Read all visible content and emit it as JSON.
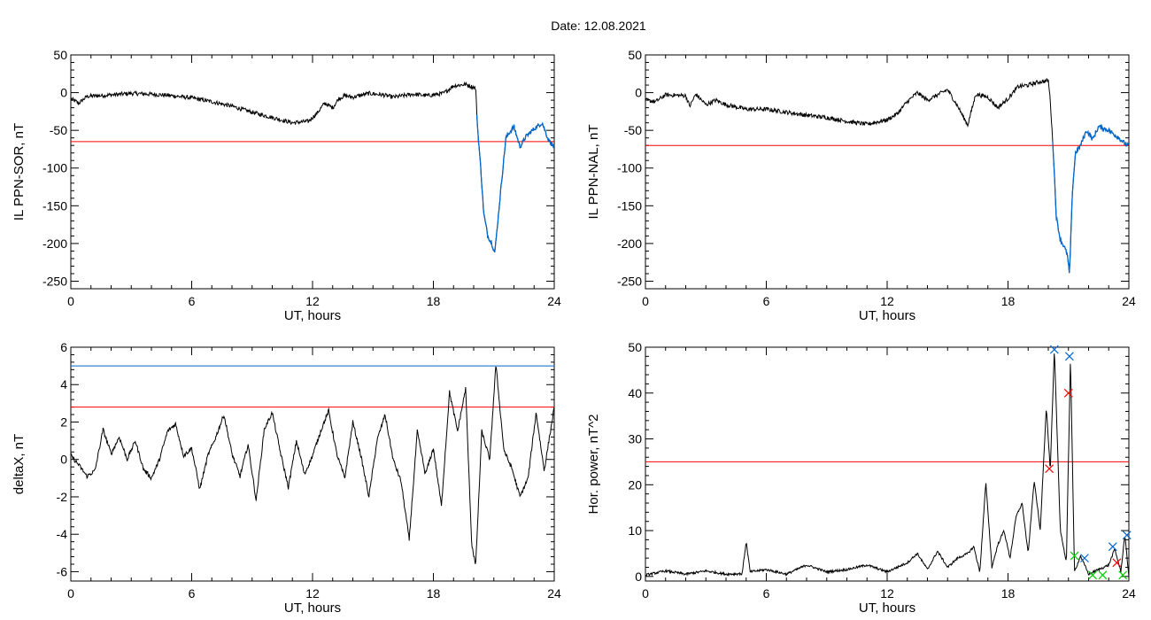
{
  "title": "Date:  12.08.2021",
  "colors": {
    "trace": "#000000",
    "threshold_red": "#ff0000",
    "threshold_blue": "#0066cc",
    "highlight_blue": "#0066cc",
    "marker_green": "#00cc00"
  },
  "chart_data": [
    {
      "id": "p1",
      "type": "line",
      "xlabel": "UT, hours",
      "ylabel": "IL PPN-SOR, nT",
      "xlim": [
        0,
        24
      ],
      "ylim": [
        -260,
        50
      ],
      "xticks": [
        0,
        6,
        12,
        18,
        24
      ],
      "yticks": [
        50,
        0,
        -50,
        -100,
        -150,
        -200,
        -250
      ],
      "hlines": [
        {
          "y": -65,
          "color": "#ff0000"
        }
      ],
      "highlight_from_x": 20.15,
      "highlight_color": "#0066cc",
      "keypoints": [
        [
          0,
          -8
        ],
        [
          0.4,
          -14
        ],
        [
          0.8,
          -5
        ],
        [
          2,
          -3
        ],
        [
          3,
          -1
        ],
        [
          4,
          -2
        ],
        [
          5,
          -4
        ],
        [
          6,
          -7
        ],
        [
          7,
          -12
        ],
        [
          8,
          -18
        ],
        [
          9,
          -26
        ],
        [
          10,
          -33
        ],
        [
          11,
          -40
        ],
        [
          11.8,
          -38
        ],
        [
          12.2,
          -28
        ],
        [
          12.6,
          -14
        ],
        [
          13,
          -20
        ],
        [
          13.3,
          -8
        ],
        [
          13.6,
          -4
        ],
        [
          14,
          -6
        ],
        [
          14.8,
          -1
        ],
        [
          15.5,
          -3
        ],
        [
          16,
          -6
        ],
        [
          17,
          -2
        ],
        [
          17.7,
          -4
        ],
        [
          18.5,
          -1
        ],
        [
          19,
          9
        ],
        [
          19.6,
          11
        ],
        [
          20.1,
          6
        ],
        [
          20.2,
          -50
        ],
        [
          20.35,
          -100
        ],
        [
          20.5,
          -160
        ],
        [
          20.7,
          -190
        ],
        [
          20.9,
          -200
        ],
        [
          21.05,
          -212
        ],
        [
          21.2,
          -170
        ],
        [
          21.45,
          -100
        ],
        [
          21.6,
          -60
        ],
        [
          21.8,
          -52
        ],
        [
          22,
          -45
        ],
        [
          22.3,
          -72
        ],
        [
          22.6,
          -58
        ],
        [
          23,
          -48
        ],
        [
          23.4,
          -40
        ],
        [
          23.7,
          -62
        ],
        [
          24,
          -72
        ]
      ]
    },
    {
      "id": "p2",
      "type": "line",
      "xlabel": "UT, hours",
      "ylabel": "IL PPN-NAL, nT",
      "xlim": [
        0,
        24
      ],
      "ylim": [
        -260,
        50
      ],
      "xticks": [
        0,
        6,
        12,
        18,
        24
      ],
      "yticks": [
        50,
        0,
        -50,
        -100,
        -150,
        -200,
        -250
      ],
      "hlines": [
        {
          "y": -70,
          "color": "#ff0000"
        }
      ],
      "highlight_from_x": 20.2,
      "highlight_color": "#0066cc",
      "keypoints": [
        [
          0,
          -10
        ],
        [
          0.5,
          -12
        ],
        [
          1,
          -3
        ],
        [
          2,
          -4
        ],
        [
          2.2,
          -18
        ],
        [
          2.5,
          -2
        ],
        [
          3,
          -16
        ],
        [
          3.5,
          -10
        ],
        [
          4,
          -16
        ],
        [
          5,
          -22
        ],
        [
          6,
          -22
        ],
        [
          7,
          -26
        ],
        [
          8,
          -30
        ],
        [
          9,
          -33
        ],
        [
          10,
          -38
        ],
        [
          11,
          -42
        ],
        [
          12,
          -36
        ],
        [
          12.5,
          -28
        ],
        [
          13,
          -12
        ],
        [
          13.5,
          0
        ],
        [
          14,
          -10
        ],
        [
          14.5,
          -3
        ],
        [
          15,
          4
        ],
        [
          15.5,
          -18
        ],
        [
          16,
          -43
        ],
        [
          16.4,
          -2
        ],
        [
          17,
          -6
        ],
        [
          17.5,
          -20
        ],
        [
          18,
          -8
        ],
        [
          18.5,
          8
        ],
        [
          19,
          10
        ],
        [
          19.5,
          14
        ],
        [
          20,
          16
        ],
        [
          20.1,
          -10
        ],
        [
          20.25,
          -80
        ],
        [
          20.4,
          -165
        ],
        [
          20.6,
          -195
        ],
        [
          20.8,
          -205
        ],
        [
          20.95,
          -215
        ],
        [
          21.05,
          -242
        ],
        [
          21.2,
          -130
        ],
        [
          21.35,
          -80
        ],
        [
          21.6,
          -70
        ],
        [
          21.9,
          -50
        ],
        [
          22.2,
          -62
        ],
        [
          22.5,
          -45
        ],
        [
          23,
          -50
        ],
        [
          23.5,
          -60
        ],
        [
          23.9,
          -70
        ],
        [
          24,
          -68
        ]
      ]
    },
    {
      "id": "p3",
      "type": "line",
      "xlabel": "UT, hours",
      "ylabel": "deltaX, nT",
      "xlim": [
        0,
        24
      ],
      "ylim": [
        -6.5,
        6
      ],
      "xticks": [
        0,
        6,
        12,
        18,
        24
      ],
      "yticks": [
        6,
        4,
        2,
        0,
        -2,
        -4,
        -6
      ],
      "hlines": [
        {
          "y": 5.0,
          "color": "#0066cc"
        },
        {
          "y": 2.8,
          "color": "#ff0000"
        }
      ],
      "keypoints": [
        [
          0,
          0.2
        ],
        [
          0.4,
          -0.3
        ],
        [
          0.8,
          -0.9
        ],
        [
          1.2,
          -0.6
        ],
        [
          1.6,
          1.6
        ],
        [
          2,
          0.3
        ],
        [
          2.4,
          1.2
        ],
        [
          2.8,
          0.0
        ],
        [
          3.2,
          1.0
        ],
        [
          3.6,
          -0.5
        ],
        [
          4,
          -1.0
        ],
        [
          4.4,
          0.0
        ],
        [
          4.8,
          1.5
        ],
        [
          5.2,
          1.9
        ],
        [
          5.6,
          0.2
        ],
        [
          6,
          0.6
        ],
        [
          6.4,
          -1.6
        ],
        [
          6.8,
          0.2
        ],
        [
          7.2,
          1.2
        ],
        [
          7.6,
          2.4
        ],
        [
          8,
          0.3
        ],
        [
          8.4,
          -0.9
        ],
        [
          8.8,
          0.8
        ],
        [
          9.2,
          -2.2
        ],
        [
          9.6,
          1.6
        ],
        [
          10,
          2.5
        ],
        [
          10.4,
          0.4
        ],
        [
          10.8,
          -1.5
        ],
        [
          11.2,
          1.0
        ],
        [
          11.6,
          -0.8
        ],
        [
          12,
          0.2
        ],
        [
          12.4,
          1.5
        ],
        [
          12.8,
          2.6
        ],
        [
          13.2,
          0.3
        ],
        [
          13.6,
          -1.0
        ],
        [
          14,
          2.0
        ],
        [
          14.4,
          0.2
        ],
        [
          14.8,
          -2.0
        ],
        [
          15.2,
          1.0
        ],
        [
          15.6,
          2.4
        ],
        [
          16,
          0.0
        ],
        [
          16.4,
          -1.2
        ],
        [
          16.8,
          -4.3
        ],
        [
          17.2,
          1.5
        ],
        [
          17.6,
          -0.8
        ],
        [
          18,
          0.6
        ],
        [
          18.4,
          -2.5
        ],
        [
          18.8,
          3.6
        ],
        [
          19.2,
          1.5
        ],
        [
          19.6,
          3.8
        ],
        [
          19.9,
          -4.5
        ],
        [
          20.1,
          -5.7
        ],
        [
          20.4,
          1.5
        ],
        [
          20.8,
          0.0
        ],
        [
          21.1,
          5.1
        ],
        [
          21.5,
          0.5
        ],
        [
          21.9,
          -0.5
        ],
        [
          22.3,
          -2.0
        ],
        [
          22.7,
          -1.0
        ],
        [
          23.1,
          2.5
        ],
        [
          23.5,
          -0.6
        ],
        [
          24,
          2.8
        ]
      ]
    },
    {
      "id": "p4",
      "type": "line",
      "xlabel": "UT, hours",
      "ylabel": "Hor. power, nT^2",
      "xlim": [
        0,
        24
      ],
      "ylim": [
        -1,
        50
      ],
      "xticks": [
        0,
        6,
        12,
        18,
        24
      ],
      "yticks": [
        50,
        40,
        30,
        20,
        10,
        0
      ],
      "hlines": [
        {
          "y": 25,
          "color": "#ff0000"
        }
      ],
      "keypoints": [
        [
          0,
          0.3
        ],
        [
          1,
          1.2
        ],
        [
          2,
          0.5
        ],
        [
          3,
          1.2
        ],
        [
          4,
          0.5
        ],
        [
          4.8,
          0.6
        ],
        [
          5.0,
          7.5
        ],
        [
          5.2,
          1.0
        ],
        [
          6,
          1.5
        ],
        [
          7,
          0.5
        ],
        [
          8,
          2.5
        ],
        [
          9,
          1.0
        ],
        [
          10,
          1.5
        ],
        [
          11,
          2.5
        ],
        [
          12,
          1.0
        ],
        [
          13,
          3.0
        ],
        [
          13.5,
          5.0
        ],
        [
          14,
          1.5
        ],
        [
          14.5,
          5.5
        ],
        [
          15,
          2.0
        ],
        [
          15.5,
          4.0
        ],
        [
          16,
          5.0
        ],
        [
          16.3,
          6.5
        ],
        [
          16.6,
          1.0
        ],
        [
          16.9,
          20.5
        ],
        [
          17.2,
          2.0
        ],
        [
          17.5,
          7.0
        ],
        [
          17.8,
          10.0
        ],
        [
          18.1,
          4.0
        ],
        [
          18.4,
          13.0
        ],
        [
          18.7,
          16.0
        ],
        [
          19.0,
          5.0
        ],
        [
          19.3,
          21.0
        ],
        [
          19.6,
          10.0
        ],
        [
          19.9,
          37.0
        ],
        [
          20.1,
          23.0
        ],
        [
          20.3,
          49.5
        ],
        [
          20.6,
          10.0
        ],
        [
          20.9,
          3.0
        ],
        [
          21.1,
          48.0
        ],
        [
          21.3,
          1.0
        ],
        [
          21.6,
          4.5
        ],
        [
          22,
          0.5
        ],
        [
          22.5,
          1.5
        ],
        [
          23,
          2.5
        ],
        [
          23.3,
          6.0
        ],
        [
          23.6,
          1.0
        ],
        [
          23.8,
          9.0
        ],
        [
          24,
          0.0
        ]
      ],
      "markers": [
        {
          "x": 20.3,
          "y": 49.5,
          "color": "#0066cc"
        },
        {
          "x": 21.05,
          "y": 48.0,
          "color": "#0066cc"
        },
        {
          "x": 21.0,
          "y": 40.0,
          "color": "#ff0000"
        },
        {
          "x": 20.05,
          "y": 23.5,
          "color": "#ff0000"
        },
        {
          "x": 21.3,
          "y": 4.5,
          "color": "#00cc00"
        },
        {
          "x": 21.8,
          "y": 4.0,
          "color": "#0066cc"
        },
        {
          "x": 23.2,
          "y": 6.5,
          "color": "#0066cc"
        },
        {
          "x": 23.9,
          "y": 9.0,
          "color": "#0066cc"
        },
        {
          "x": 23.4,
          "y": 3.0,
          "color": "#ff0000"
        },
        {
          "x": 22.2,
          "y": 0.3,
          "color": "#00cc00"
        },
        {
          "x": 22.7,
          "y": 0.3,
          "color": "#00cc00"
        },
        {
          "x": 23.7,
          "y": 0.3,
          "color": "#00cc00"
        }
      ]
    }
  ]
}
